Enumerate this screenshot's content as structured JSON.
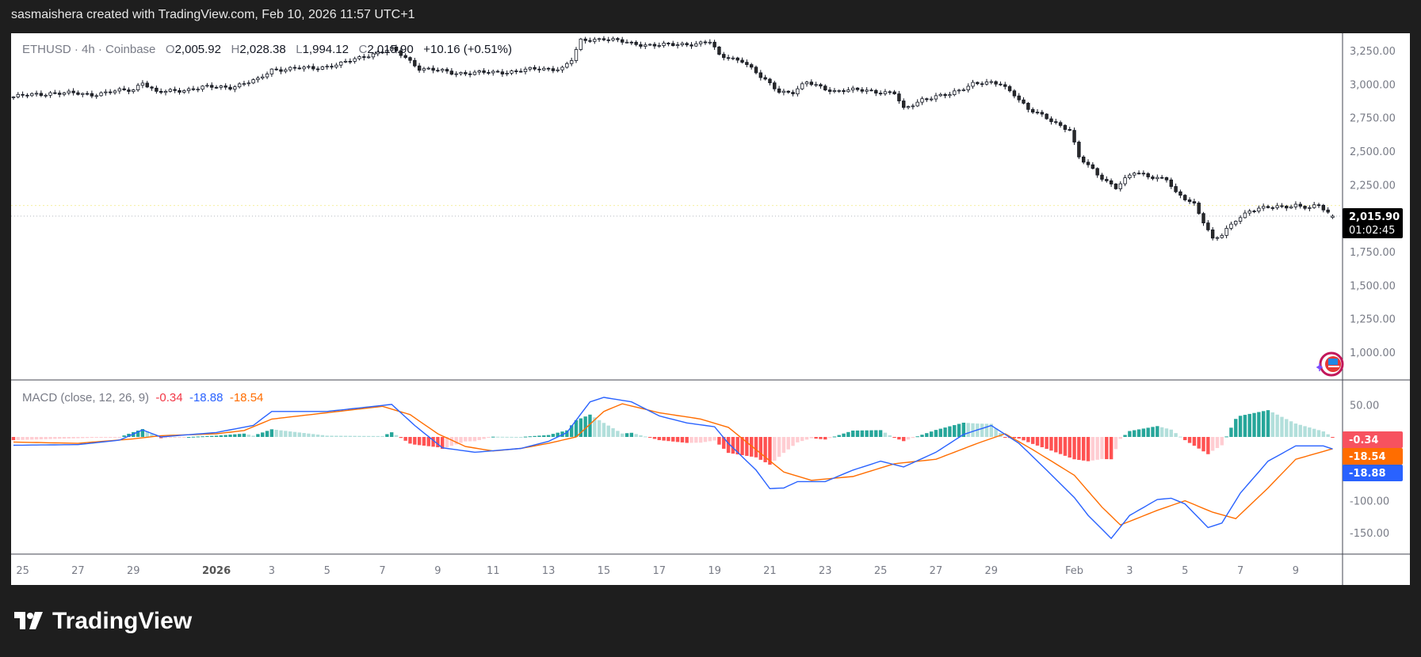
{
  "header": {
    "caption": "sasmaishera created with TradingView.com, Feb 10, 2026 11:57 UTC+1"
  },
  "legend": {
    "symbol": "ETHUSD · 4h · Coinbase",
    "o_label": "O",
    "open": "2,005.92",
    "h_label": "H",
    "high": "2,028.38",
    "l_label": "L",
    "low": "1,994.12",
    "c_label": "C",
    "close": "2,015.90",
    "change": "+10.16 (+0.51%)"
  },
  "macd_legend": {
    "title": "MACD (close, 12, 26, 9)",
    "histogram": "-0.34",
    "macd": "-18.88",
    "signal": "-18.54"
  },
  "price_badge": {
    "price": "2,015.90",
    "countdown": "01:02:45"
  },
  "macd_badges": {
    "histogram": "-0.34",
    "signal": "-18.54",
    "macd": "-18.88"
  },
  "footer": {
    "logo_text": "TradingView"
  },
  "colors": {
    "macd": "#2962ff",
    "signal": "#ff6d00",
    "hist_up_strong": "#26a69a",
    "hist_up_weak": "#b2dfdb",
    "hist_down_strong": "#ff5252",
    "hist_down_weak": "#ffcdd2",
    "up_candle": "#ffffff",
    "down_candle": "#2a2a2a",
    "alert_line": "#f5f0a0"
  },
  "icons": {
    "event_marker": "sparkle-us-flag-icon",
    "logo": "tradingview-logo-icon"
  },
  "chart_data": [
    {
      "type": "candlestick",
      "symbol": "ETHUSD",
      "interval": "4h",
      "exchange": "Coinbase",
      "yaxis": {
        "range": [
          875,
          3350
        ],
        "ticks": [
          "3,250.00",
          "3,000.00",
          "2,750.00",
          "2,500.00",
          "2,250.00",
          "1,750.00",
          "1,500.00",
          "1,250.00",
          "1,000.00"
        ],
        "tick_values": [
          3250,
          3000,
          2750,
          2500,
          2250,
          1750,
          1500,
          1250,
          1000
        ]
      },
      "xaxis": {
        "range": [
          "2025-12-24 16:00",
          "2026-02-10 12:00"
        ],
        "ticks": [
          {
            "label": "25",
            "date": "2025-12-25"
          },
          {
            "label": "27",
            "date": "2025-12-27"
          },
          {
            "label": "29",
            "date": "2025-12-29"
          },
          {
            "label": "2026",
            "date": "2026-01-01",
            "bold": true
          },
          {
            "label": "3",
            "date": "2026-01-03"
          },
          {
            "label": "5",
            "date": "2026-01-05"
          },
          {
            "label": "7",
            "date": "2026-01-07"
          },
          {
            "label": "9",
            "date": "2026-01-09"
          },
          {
            "label": "11",
            "date": "2026-01-11"
          },
          {
            "label": "13",
            "date": "2026-01-13"
          },
          {
            "label": "15",
            "date": "2026-01-15"
          },
          {
            "label": "17",
            "date": "2026-01-17"
          },
          {
            "label": "19",
            "date": "2026-01-19"
          },
          {
            "label": "21",
            "date": "2026-01-21"
          },
          {
            "label": "23",
            "date": "2026-01-23"
          },
          {
            "label": "25",
            "date": "2026-01-25"
          },
          {
            "label": "27",
            "date": "2026-01-27"
          },
          {
            "label": "29",
            "date": "2026-01-29"
          },
          {
            "label": "Feb",
            "date": "2026-02-01"
          },
          {
            "label": "3",
            "date": "2026-02-03"
          },
          {
            "label": "5",
            "date": "2026-02-05"
          },
          {
            "label": "7",
            "date": "2026-02-07"
          },
          {
            "label": "9",
            "date": "2026-02-09"
          }
        ]
      },
      "close_path": [
        [
          "2025-12-24 16:00",
          2905
        ],
        [
          "2025-12-26 00:00",
          2935
        ],
        [
          "2025-12-27 12:00",
          2925
        ],
        [
          "2025-12-29 00:00",
          2960
        ],
        [
          "2025-12-29 08:00",
          3020
        ],
        [
          "2025-12-29 20:00",
          2935
        ],
        [
          "2025-12-31 12:00",
          2975
        ],
        [
          "2026-01-01 12:00",
          2980
        ],
        [
          "2026-01-02 12:00",
          3030
        ],
        [
          "2026-01-03 00:00",
          3110
        ],
        [
          "2026-01-04 12:00",
          3120
        ],
        [
          "2026-01-05 12:00",
          3150
        ],
        [
          "2026-01-06 12:00",
          3220
        ],
        [
          "2026-01-07 08:00",
          3260
        ],
        [
          "2026-01-07 20:00",
          3200
        ],
        [
          "2026-01-08 08:00",
          3120
        ],
        [
          "2026-01-09 12:00",
          3085
        ],
        [
          "2026-01-11 00:00",
          3085
        ],
        [
          "2026-01-12 12:00",
          3110
        ],
        [
          "2026-01-13 12:00",
          3120
        ],
        [
          "2026-01-13 20:00",
          3180
        ],
        [
          "2026-01-14 04:00",
          3320
        ],
        [
          "2026-01-15 00:00",
          3345
        ],
        [
          "2026-01-16 00:00",
          3300
        ],
        [
          "2026-01-17 12:00",
          3290
        ],
        [
          "2026-01-18 20:00",
          3315
        ],
        [
          "2026-01-19 04:00",
          3210
        ],
        [
          "2026-01-20 00:00",
          3180
        ],
        [
          "2026-01-20 16:00",
          3050
        ],
        [
          "2026-01-21 08:00",
          2950
        ],
        [
          "2026-01-21 20:00",
          2940
        ],
        [
          "2026-01-22 08:00",
          3010
        ],
        [
          "2026-01-23 08:00",
          2950
        ],
        [
          "2026-01-24 12:00",
          2955
        ],
        [
          "2026-01-25 12:00",
          2930
        ],
        [
          "2026-01-25 20:00",
          2810
        ],
        [
          "2026-01-26 12:00",
          2890
        ],
        [
          "2026-01-27 12:00",
          2920
        ],
        [
          "2026-01-28 08:00",
          3010
        ],
        [
          "2026-01-29 08:00",
          3000
        ],
        [
          "2026-01-29 20:00",
          2930
        ],
        [
          "2026-01-30 08:00",
          2810
        ],
        [
          "2026-01-31 04:00",
          2730
        ],
        [
          "2026-01-31 20:00",
          2660
        ],
        [
          "2026-02-01 04:00",
          2450
        ],
        [
          "2026-02-01 20:00",
          2330
        ],
        [
          "2026-02-02 12:00",
          2230
        ],
        [
          "2026-02-03 04:00",
          2340
        ],
        [
          "2026-02-04 08:00",
          2290
        ],
        [
          "2026-02-04 16:00",
          2180
        ],
        [
          "2026-02-05 08:00",
          2110
        ],
        [
          "2026-02-05 16:00",
          1980
        ],
        [
          "2026-02-06 00:00",
          1840
        ],
        [
          "2026-02-06 08:00",
          1870
        ],
        [
          "2026-02-06 20:00",
          1990
        ],
        [
          "2026-02-07 08:00",
          2060
        ],
        [
          "2026-02-08 04:00",
          2080
        ],
        [
          "2026-02-09 00:00",
          2100
        ],
        [
          "2026-02-09 12:00",
          2070
        ],
        [
          "2026-02-09 20:00",
          2095
        ],
        [
          "2026-02-10 08:00",
          2015.9
        ]
      ],
      "last": {
        "open": 2005.92,
        "high": 2028.38,
        "low": 1994.12,
        "close": 2015.9
      },
      "horizontal_line": 2095
    },
    {
      "type": "macd",
      "params": "close, 12, 26, 9",
      "yaxis": {
        "range": [
          -162,
          75
        ],
        "ticks": [
          "50.00",
          "-100.00",
          "-150.00"
        ],
        "tick_values": [
          50,
          -100,
          -150
        ]
      },
      "macd_path": [
        [
          "2025-12-24 16:00",
          -13
        ],
        [
          "2025-12-27 00:00",
          -12
        ],
        [
          "2025-12-28 12:00",
          -5
        ],
        [
          "2025-12-29 08:00",
          11
        ],
        [
          "2025-12-30 00:00",
          0
        ],
        [
          "2026-01-01 00:00",
          7
        ],
        [
          "2026-01-02 08:00",
          18
        ],
        [
          "2026-01-03 00:00",
          40
        ],
        [
          "2026-01-05 00:00",
          40
        ],
        [
          "2026-01-06 12:00",
          47
        ],
        [
          "2026-01-07 08:00",
          51
        ],
        [
          "2026-01-08 04:00",
          18
        ],
        [
          "2026-01-09 04:00",
          -17
        ],
        [
          "2026-01-10 08:00",
          -24
        ],
        [
          "2026-01-12 00:00",
          -18
        ],
        [
          "2026-01-13 00:00",
          -7
        ],
        [
          "2026-01-13 16:00",
          7
        ],
        [
          "2026-01-14 12:00",
          55
        ],
        [
          "2026-01-15 00:00",
          62
        ],
        [
          "2026-01-16 00:00",
          55
        ],
        [
          "2026-01-17 00:00",
          33
        ],
        [
          "2026-01-18 00:00",
          22
        ],
        [
          "2026-01-19 00:00",
          16
        ],
        [
          "2026-01-19 12:00",
          -10
        ],
        [
          "2026-01-20 12:00",
          -52
        ],
        [
          "2026-01-21 00:00",
          -81
        ],
        [
          "2026-01-21 12:00",
          -80
        ],
        [
          "2026-01-22 00:00",
          -70
        ],
        [
          "2026-01-23 00:00",
          -70
        ],
        [
          "2026-01-24 00:00",
          -52
        ],
        [
          "2026-01-25 00:00",
          -38
        ],
        [
          "2026-01-25 20:00",
          -47
        ],
        [
          "2026-01-27 00:00",
          -24
        ],
        [
          "2026-01-28 00:00",
          4
        ],
        [
          "2026-01-29 00:00",
          18
        ],
        [
          "2026-01-30 00:00",
          -10
        ],
        [
          "2026-01-31 00:00",
          -52
        ],
        [
          "2026-02-01 00:00",
          -95
        ],
        [
          "2026-02-01 12:00",
          -123
        ],
        [
          "2026-02-02 08:00",
          -159
        ],
        [
          "2026-02-03 00:00",
          -123
        ],
        [
          "2026-02-04 00:00",
          -98
        ],
        [
          "2026-02-04 12:00",
          -96
        ],
        [
          "2026-02-05 00:00",
          -105
        ],
        [
          "2026-02-05 20:00",
          -142
        ],
        [
          "2026-02-06 08:00",
          -135
        ],
        [
          "2026-02-07 00:00",
          -88
        ],
        [
          "2026-02-08 00:00",
          -38
        ],
        [
          "2026-02-09 00:00",
          -14
        ],
        [
          "2026-02-10 00:00",
          -14
        ],
        [
          "2026-02-10 08:00",
          -18.88
        ]
      ],
      "signal_path": [
        [
          "2025-12-24 16:00",
          -8
        ],
        [
          "2025-12-27 00:00",
          -10
        ],
        [
          "2025-12-29 00:00",
          -3
        ],
        [
          "2025-12-30 00:00",
          2
        ],
        [
          "2026-01-01 00:00",
          5
        ],
        [
          "2026-01-02 00:00",
          10
        ],
        [
          "2026-01-03 00:00",
          28
        ],
        [
          "2026-01-05 00:00",
          38
        ],
        [
          "2026-01-07 00:00",
          48
        ],
        [
          "2026-01-08 00:00",
          35
        ],
        [
          "2026-01-09 00:00",
          5
        ],
        [
          "2026-01-10 00:00",
          -15
        ],
        [
          "2026-01-11 00:00",
          -22
        ],
        [
          "2026-01-12 00:00",
          -18
        ],
        [
          "2026-01-13 00:00",
          -10
        ],
        [
          "2026-01-14 00:00",
          0
        ],
        [
          "2026-01-15 00:00",
          40
        ],
        [
          "2026-01-15 16:00",
          52
        ],
        [
          "2026-01-17 00:00",
          38
        ],
        [
          "2026-01-18 12:00",
          28
        ],
        [
          "2026-01-19 12:00",
          15
        ],
        [
          "2026-01-20 12:00",
          -20
        ],
        [
          "2026-01-21 12:00",
          -55
        ],
        [
          "2026-01-22 12:00",
          -68
        ],
        [
          "2026-01-24 00:00",
          -62
        ],
        [
          "2026-01-25 12:00",
          -42
        ],
        [
          "2026-01-27 00:00",
          -35
        ],
        [
          "2026-01-28 12:00",
          -10
        ],
        [
          "2026-01-29 12:00",
          5
        ],
        [
          "2026-01-30 12:00",
          -20
        ],
        [
          "2026-02-01 00:00",
          -60
        ],
        [
          "2026-02-02 00:00",
          -110
        ],
        [
          "2026-02-02 16:00",
          -138
        ],
        [
          "2026-02-04 00:00",
          -115
        ],
        [
          "2026-02-05 00:00",
          -100
        ],
        [
          "2026-02-06 00:00",
          -118
        ],
        [
          "2026-02-06 20:00",
          -128
        ],
        [
          "2026-02-08 00:00",
          -80
        ],
        [
          "2026-02-09 00:00",
          -35
        ],
        [
          "2026-02-10 08:00",
          -18.54
        ]
      ],
      "histogram_last": -0.34
    }
  ]
}
